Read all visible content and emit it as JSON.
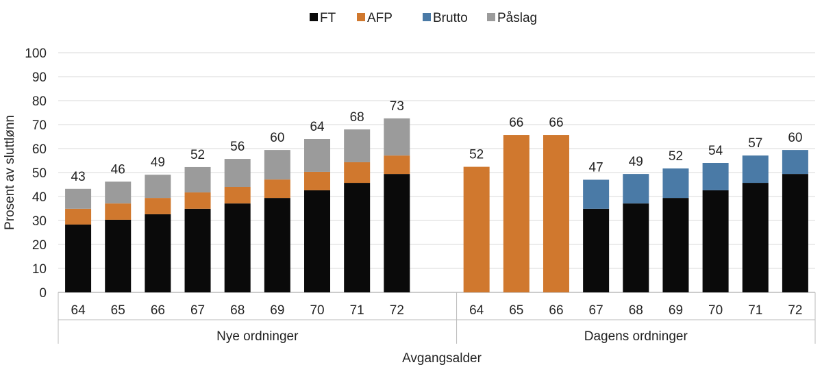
{
  "chart_data": {
    "type": "bar",
    "stacked": true,
    "title": "",
    "xlabel": "Avgangsalder",
    "ylabel": "Prosent av sluttlønn",
    "ylim": [
      0,
      100
    ],
    "yticks": [
      0,
      10,
      20,
      30,
      40,
      50,
      60,
      70,
      80,
      90,
      100
    ],
    "grid": true,
    "legend_position": "top-center",
    "groups": [
      {
        "name": "Nye ordninger",
        "categories": [
          "64",
          "65",
          "66",
          "67",
          "68",
          "69",
          "70",
          "71",
          "72"
        ]
      },
      {
        "name": "Dagens ordninger",
        "categories": [
          "64",
          "65",
          "66",
          "67",
          "68",
          "69",
          "70",
          "71",
          "72"
        ]
      }
    ],
    "series": [
      {
        "name": "FT",
        "color": "#0a0a0a",
        "values": [
          28.3,
          30.3,
          32.6,
          34.9,
          37.1,
          39.4,
          42.6,
          45.7,
          49.4,
          0,
          0,
          0,
          34.9,
          37.1,
          39.4,
          42.6,
          45.7,
          49.4
        ]
      },
      {
        "name": "AFP",
        "color": "#d0782e",
        "values": [
          6.6,
          6.8,
          6.8,
          6.8,
          6.9,
          7.7,
          7.7,
          8.6,
          7.7,
          52.4,
          65.7,
          65.7,
          0,
          0,
          0,
          0,
          0,
          0
        ]
      },
      {
        "name": "Brutto",
        "color": "#4a7aa6",
        "values": [
          0,
          0,
          0,
          0,
          0,
          0,
          0,
          0,
          0,
          0,
          0,
          0,
          12.1,
          12.3,
          12.3,
          11.4,
          11.4,
          10.0
        ]
      },
      {
        "name": "Påslag",
        "color": "#9b9b9b",
        "values": [
          8.3,
          9.1,
          9.7,
          10.6,
          11.7,
          12.3,
          13.7,
          13.7,
          15.5,
          0,
          0,
          0,
          0,
          0,
          0,
          0,
          0,
          0
        ]
      }
    ],
    "total_labels": [
      "43",
      "46",
      "49",
      "52",
      "56",
      "60",
      "64",
      "68",
      "73",
      "52",
      "66",
      "66",
      "47",
      "49",
      "52",
      "54",
      "57",
      "60"
    ]
  }
}
